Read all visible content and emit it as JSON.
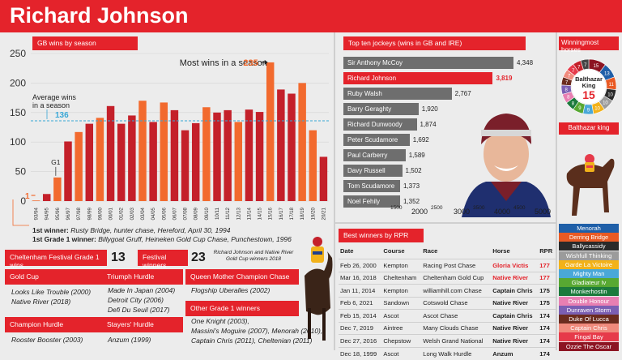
{
  "header": {
    "title": "Richard Johnson"
  },
  "chart_data": [
    {
      "type": "bar",
      "title": "GB wins by season",
      "categories": [
        "93/94",
        "94/95",
        "95/96",
        "96/97",
        "97/98",
        "98/99",
        "99/00",
        "00/01",
        "01/02",
        "02/03",
        "03/04",
        "04/05",
        "05/06",
        "06/07",
        "07/08",
        "08/09",
        "09/10",
        "10/11",
        "11/12",
        "12/13",
        "13/14",
        "14/15",
        "15/16",
        "16/17",
        "17/18",
        "18/19",
        "19/20",
        "20/21"
      ],
      "values": [
        1,
        12,
        40,
        101,
        117,
        131,
        141,
        161,
        131,
        145,
        170,
        134,
        167,
        154,
        120,
        132,
        159,
        150,
        154,
        134,
        155,
        151,
        235,
        189,
        182,
        200,
        120,
        75
      ],
      "highlighted_color": "#f26a2e",
      "base_color": "#c4202a",
      "highlighted_categories": [
        "93/94",
        "95/96",
        "97/98",
        "99/00",
        "03/04",
        "05/06",
        "09/10",
        "12/13",
        "15/16",
        "18/19",
        "19/20"
      ],
      "ylim": [
        0,
        250
      ],
      "yticks": [
        0,
        50,
        100,
        150,
        200,
        250
      ],
      "average": {
        "label": "Average wins in a season",
        "value": 136
      },
      "annotations": {
        "most_wins": {
          "text": "Most wins in a season",
          "value": 235
        },
        "first": {
          "text": "1"
        },
        "g1": {
          "text": "G1"
        }
      }
    },
    {
      "type": "bar",
      "title": "Top ten jockeys  (wins in GB and IRE)",
      "categories": [
        "Sir Anthony McCoy",
        "Richard Johnson",
        "Ruby Walsh",
        "Barry Geraghty",
        "Richard Dunwoody",
        "Peter Scudamore",
        "Paul Carberry",
        "Davy Russell",
        "Tom Scudamore",
        "Noel Fehily"
      ],
      "values": [
        4348,
        3819,
        2767,
        1920,
        1874,
        1692,
        1589,
        1502,
        1373,
        1352
      ],
      "value_labels": [
        "4,348",
        "3,819",
        "2,767",
        "1,920",
        "1,874",
        "1,692",
        "1,589",
        "1,502",
        "1,373",
        "1,352"
      ],
      "highlight": "Richard Johnson",
      "xlim": [
        1000,
        5000
      ],
      "xticks": [
        "1500",
        "2000",
        "2500",
        "3000",
        "3500",
        "4000",
        "4500",
        "5000"
      ]
    }
  ],
  "first_wins": {
    "winner_label": "1st winner:",
    "winner_text": "Rusty Bridge, hunter chase, Hereford, April 30, 1994",
    "grade1_label": "1st Grade 1 winner:",
    "grade1_text": "Billygoat Gruff, Heineken Gold Cup Chase, Punchestown, 1996"
  },
  "stats": {
    "festival_g1_label": "Cheltenham Festival Grade 1 wins",
    "festival_g1_value": "13",
    "festival_winners_label": "Festival winners",
    "festival_winners_value": "23",
    "caption": "Richard Johnson and Native River Gold Cup winners 2018"
  },
  "races": {
    "gold_cup": {
      "title": "Gold Cup",
      "items": [
        "Looks Like Trouble (2000)",
        "Native River (2018)"
      ]
    },
    "triumph": {
      "title": "Triumph Hurdle",
      "items": [
        "Made In Japan (2004)",
        "Detroit City (2006)",
        "Defi Du Seuil (2017)"
      ]
    },
    "queen_mother": {
      "title": "Queen Mother Champion Chase",
      "items": [
        "Flogship Uberalles (2002)"
      ]
    },
    "champion": {
      "title": "Champion Hurdle",
      "items": [
        "Rooster Booster (2003)"
      ]
    },
    "stayers": {
      "title": "Stayers' Hurdle",
      "items": [
        "Anzum (1999)"
      ]
    },
    "other_g1": {
      "title": "Other Grade 1 winners",
      "items": [
        "One Knight (2003),",
        "Massini's Moguire (2007), Menorah (2010),",
        "Captain Chris (2011), Cheltenian (2011)"
      ]
    }
  },
  "rpr": {
    "title": "Best winners by RPR",
    "headers": [
      "Date",
      "Course",
      "Race",
      "Horse",
      "RPR"
    ],
    "rows": [
      {
        "date": "Feb 26, 2000",
        "course": "Kempton",
        "race": "Racing Post Chase",
        "horse": "Gloria Victis",
        "rpr": "177",
        "red": true
      },
      {
        "date": "Mar 16, 2018",
        "course": "Cheltenham",
        "race": "Cheltenham Gold Cup",
        "horse": "Native River",
        "rpr": "177",
        "red": true
      },
      {
        "date": "Jan 11, 2014",
        "course": "Kempton",
        "race": "williamhill.com Chase",
        "horse": "Captain Chris",
        "rpr": "175",
        "red": false
      },
      {
        "date": "Feb 6, 2021",
        "course": "Sandown",
        "race": "Cotswold Chase",
        "horse": "Native River",
        "rpr": "175",
        "red": false
      },
      {
        "date": "Feb 15, 2014",
        "course": "Ascot",
        "race": "Ascot Chase",
        "horse": "Captain Chris",
        "rpr": "174",
        "red": false
      },
      {
        "date": "Dec 7, 2019",
        "course": "Aintree",
        "race": "Many Clouds Chase",
        "horse": "Native River",
        "rpr": "174",
        "red": false
      },
      {
        "date": "Dec 27, 2016",
        "course": "Chepstow",
        "race": "Welsh Grand National",
        "horse": "Native River",
        "rpr": "174",
        "red": false
      },
      {
        "date": "Dec 18, 1999",
        "course": "Ascot",
        "race": "Long Walk Hurdle",
        "horse": "Anzum",
        "rpr": "174",
        "red": false
      }
    ]
  },
  "winningmost": {
    "title": "Winningmost horses",
    "wheel_numbers": [
      "15",
      "13",
      "11",
      "10",
      "10",
      "10",
      "9",
      "9",
      "8",
      "8",
      "8",
      "7",
      "7",
      "7",
      "7",
      "7"
    ],
    "top_name": "Balthazar King",
    "top_value": "15",
    "top_label": "Balthazar king",
    "legend": [
      {
        "name": "Menorah",
        "color": "#1f5fa8"
      },
      {
        "name": "Derring Bridge",
        "color": "#e95a24"
      },
      {
        "name": "Ballycassidy",
        "color": "#2a2a2a"
      },
      {
        "name": "Wishfull Thinking",
        "color": "#9b9b9b"
      },
      {
        "name": "Garde La Victoire",
        "color": "#f2b21a"
      },
      {
        "name": "Mighty Man",
        "color": "#4aa8d8"
      },
      {
        "name": "Gladiateur Iv",
        "color": "#58a832"
      },
      {
        "name": "Monkerhostin",
        "color": "#1c7a3c"
      },
      {
        "name": "Double Honour",
        "color": "#e87fb2"
      },
      {
        "name": "Dunraven Storm",
        "color": "#7b5fb3"
      },
      {
        "name": "Duke Of Lucca",
        "color": "#6b2c1f"
      },
      {
        "name": "Captain Chris",
        "color": "#f08a7c"
      },
      {
        "name": "Fingal Bay",
        "color": "#e63a4a"
      },
      {
        "name": "Ozzie The Oscar",
        "color": "#8c1422"
      }
    ]
  }
}
